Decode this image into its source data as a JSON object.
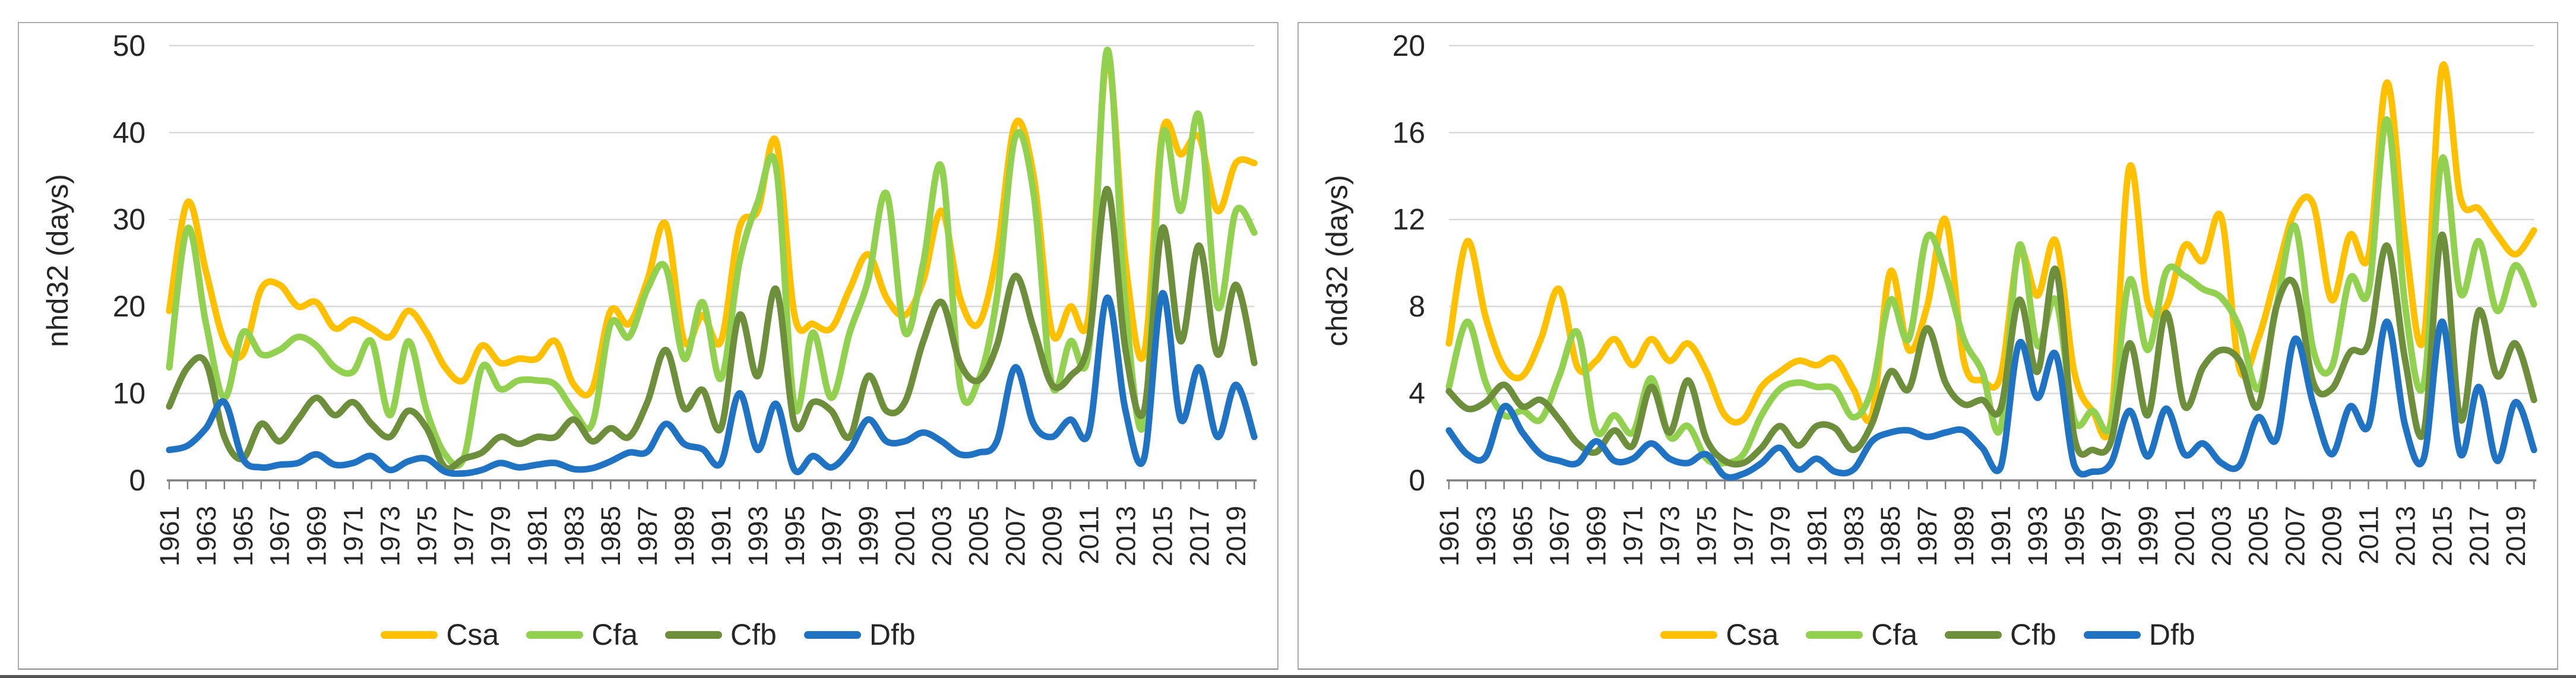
{
  "colors": {
    "Csa": "#FFC000",
    "Cfa": "#92D050",
    "Cfb": "#6D8E3B",
    "Dfb": "#1F73C2",
    "grid": "#d9d9d9",
    "axis": "#808080",
    "tick": "#808080",
    "text": "#262626"
  },
  "chart_data": [
    {
      "type": "line",
      "id": "nhd32",
      "ylabel": "nhd32 (days)",
      "ylim": [
        0,
        50
      ],
      "yticks": [
        0,
        10,
        20,
        30,
        40,
        50
      ],
      "grid": true,
      "legend_position": "bottom",
      "x": [
        1961,
        1962,
        1963,
        1964,
        1965,
        1966,
        1967,
        1968,
        1969,
        1970,
        1971,
        1972,
        1973,
        1974,
        1975,
        1976,
        1977,
        1978,
        1979,
        1980,
        1981,
        1982,
        1983,
        1984,
        1985,
        1986,
        1987,
        1988,
        1989,
        1990,
        1991,
        1992,
        1993,
        1994,
        1995,
        1996,
        1997,
        1998,
        1999,
        2000,
        2001,
        2002,
        2003,
        2004,
        2005,
        2006,
        2007,
        2008,
        2009,
        2010,
        2011,
        2012,
        2013,
        2014,
        2015,
        2016,
        2017,
        2018,
        2019,
        2020
      ],
      "x_tick_labels": [
        1961,
        1963,
        1965,
        1967,
        1969,
        1971,
        1973,
        1975,
        1977,
        1979,
        1981,
        1983,
        1985,
        1987,
        1989,
        1991,
        1993,
        1995,
        1997,
        1999,
        2001,
        2003,
        2005,
        2007,
        2009,
        2011,
        2013,
        2015,
        2017,
        2019
      ],
      "series": [
        {
          "name": "Csa",
          "values": [
            19.5,
            32,
            24,
            16,
            14.5,
            22,
            22.5,
            20,
            20.5,
            17.5,
            18.5,
            17.5,
            16.5,
            19.5,
            17,
            13,
            11.5,
            15.5,
            13.5,
            14,
            14,
            16,
            11,
            10.5,
            19.5,
            18,
            23,
            29.5,
            16,
            19,
            16,
            29,
            31,
            39,
            19,
            18,
            17.5,
            22,
            26,
            21,
            19,
            23,
            31,
            21,
            18,
            26,
            41,
            35,
            17,
            20,
            19,
            48.5,
            25,
            14.5,
            40,
            37.5,
            39.5,
            31,
            36.5,
            36.5
          ]
        },
        {
          "name": "Cfa",
          "values": [
            13,
            29,
            18,
            9.5,
            17,
            14.5,
            15,
            16.5,
            15.5,
            13,
            12.5,
            16,
            7.5,
            16,
            8,
            3,
            2.5,
            13,
            10.5,
            11.5,
            11.5,
            11,
            8,
            6.5,
            18,
            16.5,
            22,
            24.5,
            14,
            20.5,
            11.7,
            25,
            32,
            36,
            8.5,
            17,
            9.5,
            17,
            23,
            33,
            17,
            25,
            36,
            11,
            11.5,
            21,
            39.5,
            33,
            11,
            16,
            15,
            49.5,
            20,
            6.5,
            39.5,
            31,
            42,
            20,
            31,
            28.5
          ]
        },
        {
          "name": "Cfb",
          "values": [
            8.5,
            13,
            13.5,
            5,
            2.5,
            6.5,
            4.5,
            7,
            9.5,
            7.5,
            9,
            6.5,
            5,
            8,
            6,
            1.5,
            2.5,
            3.2,
            5,
            4.2,
            5,
            5,
            7,
            4.5,
            6,
            5,
            9,
            15,
            8.3,
            10.4,
            6,
            19,
            12,
            22,
            6.5,
            9,
            8,
            5,
            12,
            8,
            9,
            16,
            20.5,
            13.5,
            11.5,
            15.5,
            23.5,
            17.5,
            11,
            12,
            16,
            33.5,
            15,
            8,
            29,
            16,
            27,
            14.5,
            22.5,
            13.5
          ]
        },
        {
          "name": "Dfb",
          "values": [
            3.5,
            4,
            6,
            9,
            2.5,
            1.5,
            1.8,
            2,
            3,
            1.8,
            2,
            2.8,
            1.2,
            2.2,
            2.5,
            1,
            0.8,
            1.2,
            2,
            1.5,
            1.8,
            2,
            1.3,
            1.4,
            2.2,
            3.2,
            3.3,
            6.5,
            4.2,
            3.6,
            2,
            10,
            3.5,
            8.8,
            1.2,
            2.8,
            1.5,
            3.5,
            7,
            4.5,
            4.5,
            5.5,
            4.5,
            3,
            3.2,
            4.5,
            13,
            6.5,
            5,
            7,
            5.5,
            21,
            8,
            2.5,
            21.5,
            7,
            13,
            5,
            11,
            5
          ]
        }
      ]
    },
    {
      "type": "line",
      "id": "chd32",
      "ylabel": "chd32 (days)",
      "ylim": [
        0,
        20
      ],
      "yticks": [
        0,
        4,
        8,
        12,
        16,
        20
      ],
      "grid": true,
      "legend_position": "bottom",
      "x": [
        1961,
        1962,
        1963,
        1964,
        1965,
        1966,
        1967,
        1968,
        1969,
        1970,
        1971,
        1972,
        1973,
        1974,
        1975,
        1976,
        1977,
        1978,
        1979,
        1980,
        1981,
        1982,
        1983,
        1984,
        1985,
        1986,
        1987,
        1988,
        1989,
        1990,
        1991,
        1992,
        1993,
        1994,
        1995,
        1996,
        1997,
        1998,
        1999,
        2000,
        2001,
        2002,
        2003,
        2004,
        2005,
        2006,
        2007,
        2008,
        2009,
        2010,
        2011,
        2012,
        2013,
        2014,
        2015,
        2016,
        2017,
        2018,
        2019,
        2020
      ],
      "x_tick_labels": [
        1961,
        1963,
        1965,
        1967,
        1969,
        1971,
        1973,
        1975,
        1977,
        1979,
        1981,
        1983,
        1985,
        1987,
        1989,
        1991,
        1993,
        1995,
        1997,
        1999,
        2001,
        2003,
        2005,
        2007,
        2009,
        2011,
        2013,
        2015,
        2017,
        2019
      ],
      "series": [
        {
          "name": "Csa",
          "values": [
            6.3,
            11,
            7.5,
            5.2,
            4.8,
            6.5,
            8.8,
            5.2,
            5.5,
            6.5,
            5.3,
            6.5,
            5.5,
            6.3,
            5,
            3,
            2.8,
            4.3,
            5,
            5.5,
            5.3,
            5.6,
            4.2,
            3,
            9.6,
            6,
            8,
            12,
            5.5,
            4.6,
            4.8,
            10.5,
            8.5,
            11,
            5,
            3.2,
            2.8,
            14.4,
            8.2,
            8,
            10.8,
            10.1,
            12.1,
            5.1,
            6.5,
            9.5,
            12.4,
            12.7,
            8.3,
            11.3,
            10.3,
            18.3,
            11,
            6.5,
            19,
            13,
            12.5,
            11.3,
            10.4,
            11.5
          ]
        },
        {
          "name": "Cfa",
          "values": [
            4.3,
            7.3,
            4.5,
            3,
            3.2,
            2.8,
            4.8,
            6.8,
            2.3,
            3,
            2.2,
            4.7,
            2,
            2.5,
            1,
            0.8,
            1.2,
            3,
            4.2,
            4.5,
            4.3,
            4.2,
            2.9,
            4.2,
            8.3,
            6.5,
            11.2,
            9.5,
            6.5,
            5,
            2.4,
            10.8,
            6.2,
            8.3,
            2.8,
            3.2,
            2.6,
            9.2,
            6,
            9.6,
            9.4,
            8.8,
            8.4,
            7,
            4.2,
            8,
            11.7,
            6,
            5.2,
            9.3,
            8.7,
            16.6,
            8,
            4.4,
            14.8,
            8.6,
            11,
            7.8,
            9.9,
            8.1
          ]
        },
        {
          "name": "Cfb",
          "values": [
            4.1,
            3.3,
            3.6,
            4.4,
            3.4,
            3.7,
            2.8,
            1.7,
            1.3,
            2.3,
            1.6,
            4.3,
            2.2,
            4.6,
            1.9,
            0.9,
            0.8,
            1.5,
            2.5,
            1.6,
            2.5,
            2.4,
            1.4,
            2.6,
            5,
            4.2,
            7,
            4.5,
            3.5,
            3.7,
            3.3,
            8.3,
            5,
            9.7,
            2,
            1.4,
            1.8,
            6.3,
            3,
            7.7,
            3.4,
            5.2,
            6,
            5.5,
            3.4,
            8,
            9,
            4.5,
            4.2,
            5.9,
            6.3,
            10.8,
            5.5,
            2.2,
            11.3,
            2.8,
            7.8,
            4.8,
            6.3,
            3.7
          ]
        },
        {
          "name": "Dfb",
          "values": [
            2.3,
            1.2,
            1.1,
            3.4,
            2.2,
            1.2,
            0.9,
            0.8,
            1.8,
            0.9,
            1,
            1.7,
            1,
            0.8,
            1.2,
            0.2,
            0.3,
            0.8,
            1.5,
            0.5,
            1,
            0.4,
            0.5,
            1.8,
            2.2,
            2.3,
            2,
            2.2,
            2.3,
            1.5,
            0.6,
            6.3,
            3.8,
            5.8,
            0.7,
            0.4,
            0.8,
            3.2,
            1.1,
            3.3,
            1.2,
            1.7,
            0.8,
            0.7,
            2.9,
            1.9,
            6.5,
            3.5,
            1.2,
            3.4,
            2.5,
            7.3,
            2.5,
            1,
            7.3,
            1.2,
            4.3,
            0.9,
            3.6,
            1.4
          ]
        }
      ]
    }
  ]
}
